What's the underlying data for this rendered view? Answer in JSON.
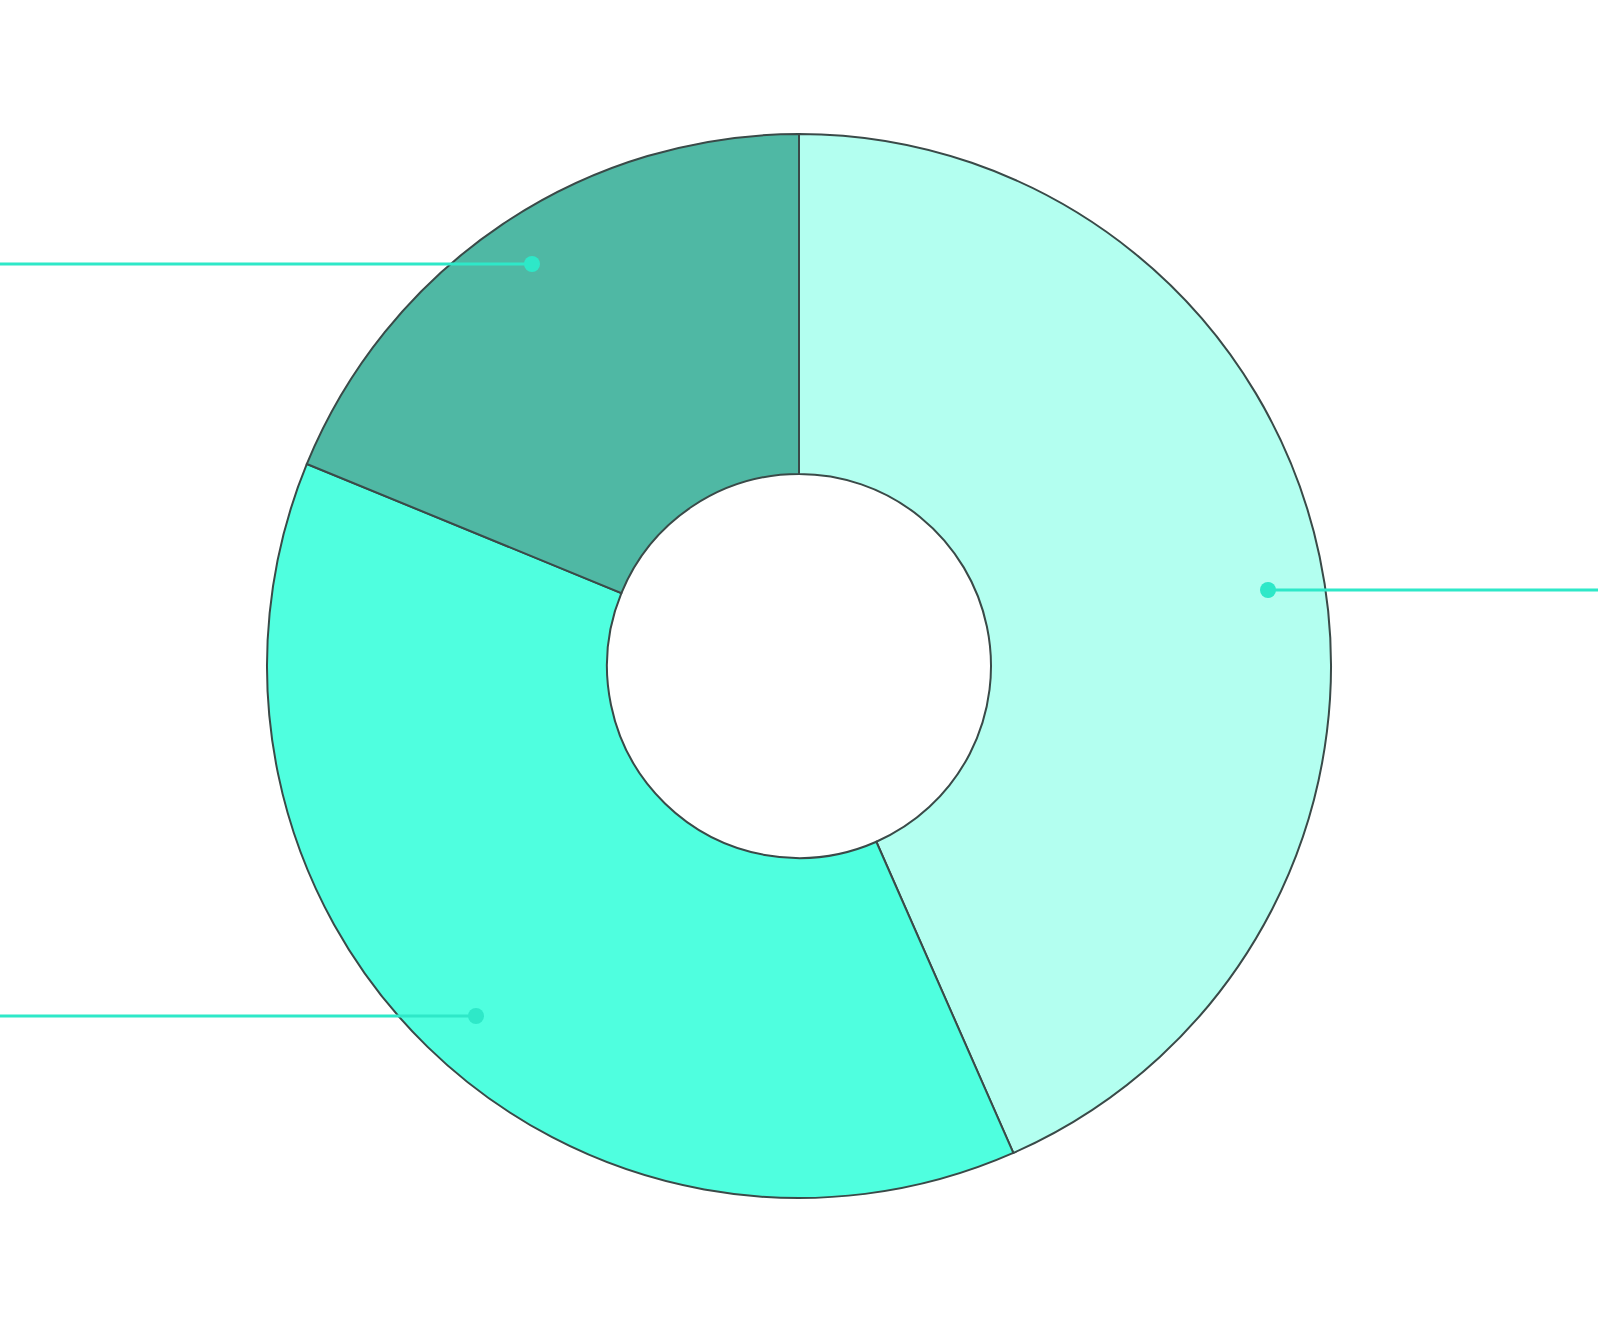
{
  "chart_data": {
    "type": "donut",
    "categories": [
      null,
      null,
      null
    ],
    "values": [
      43.4,
      37.8,
      18.8
    ],
    "colors": [
      "#b3fff0",
      "#4fffdf",
      "#4fb8a4"
    ]
  }
}
